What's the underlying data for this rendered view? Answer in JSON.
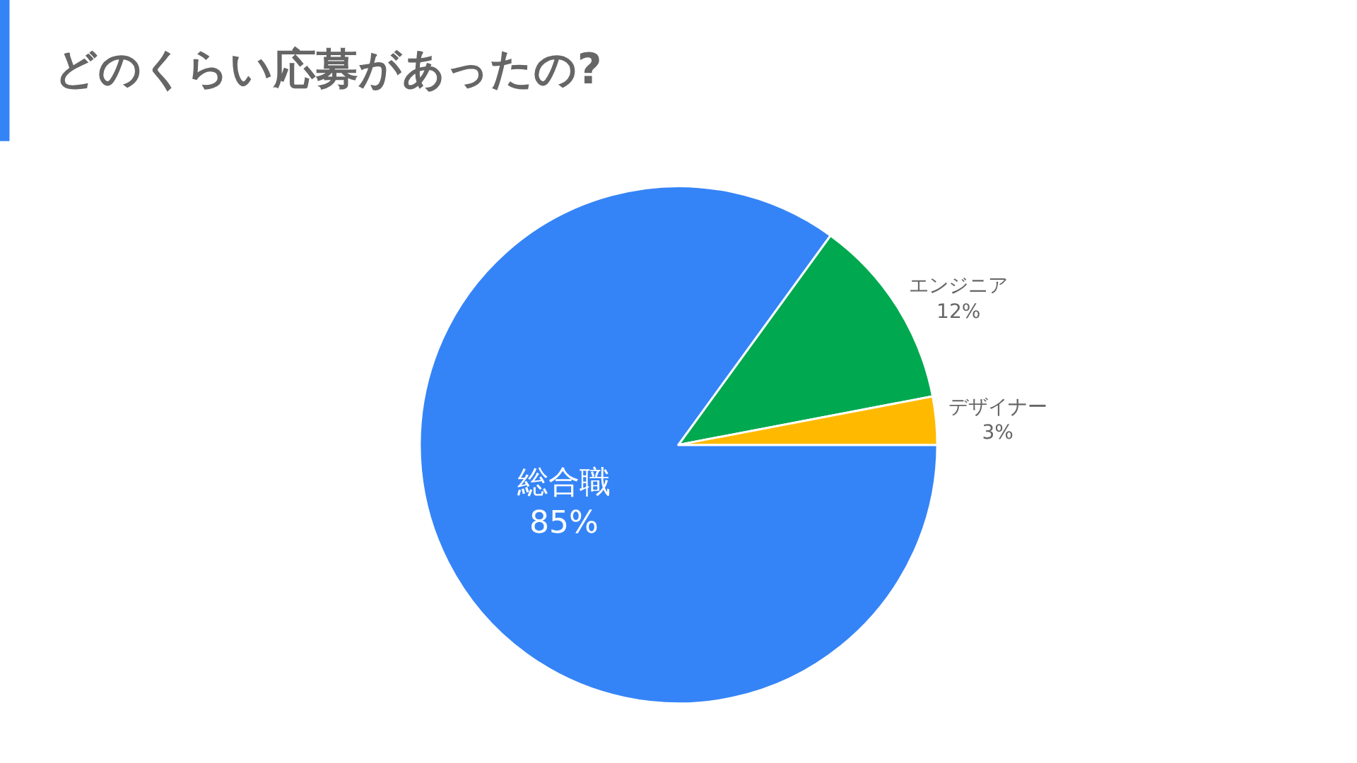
{
  "chart_data": {
    "type": "pie",
    "title": "どのくらい応募があったの?",
    "categories": [
      "総合職",
      "エンジニア",
      "デザイナー"
    ],
    "values": [
      85,
      12,
      3
    ],
    "value_labels": [
      "85%",
      "12%",
      "3%"
    ],
    "colors": [
      "#3584f7",
      "#00a94f",
      "#ffba00"
    ]
  }
}
